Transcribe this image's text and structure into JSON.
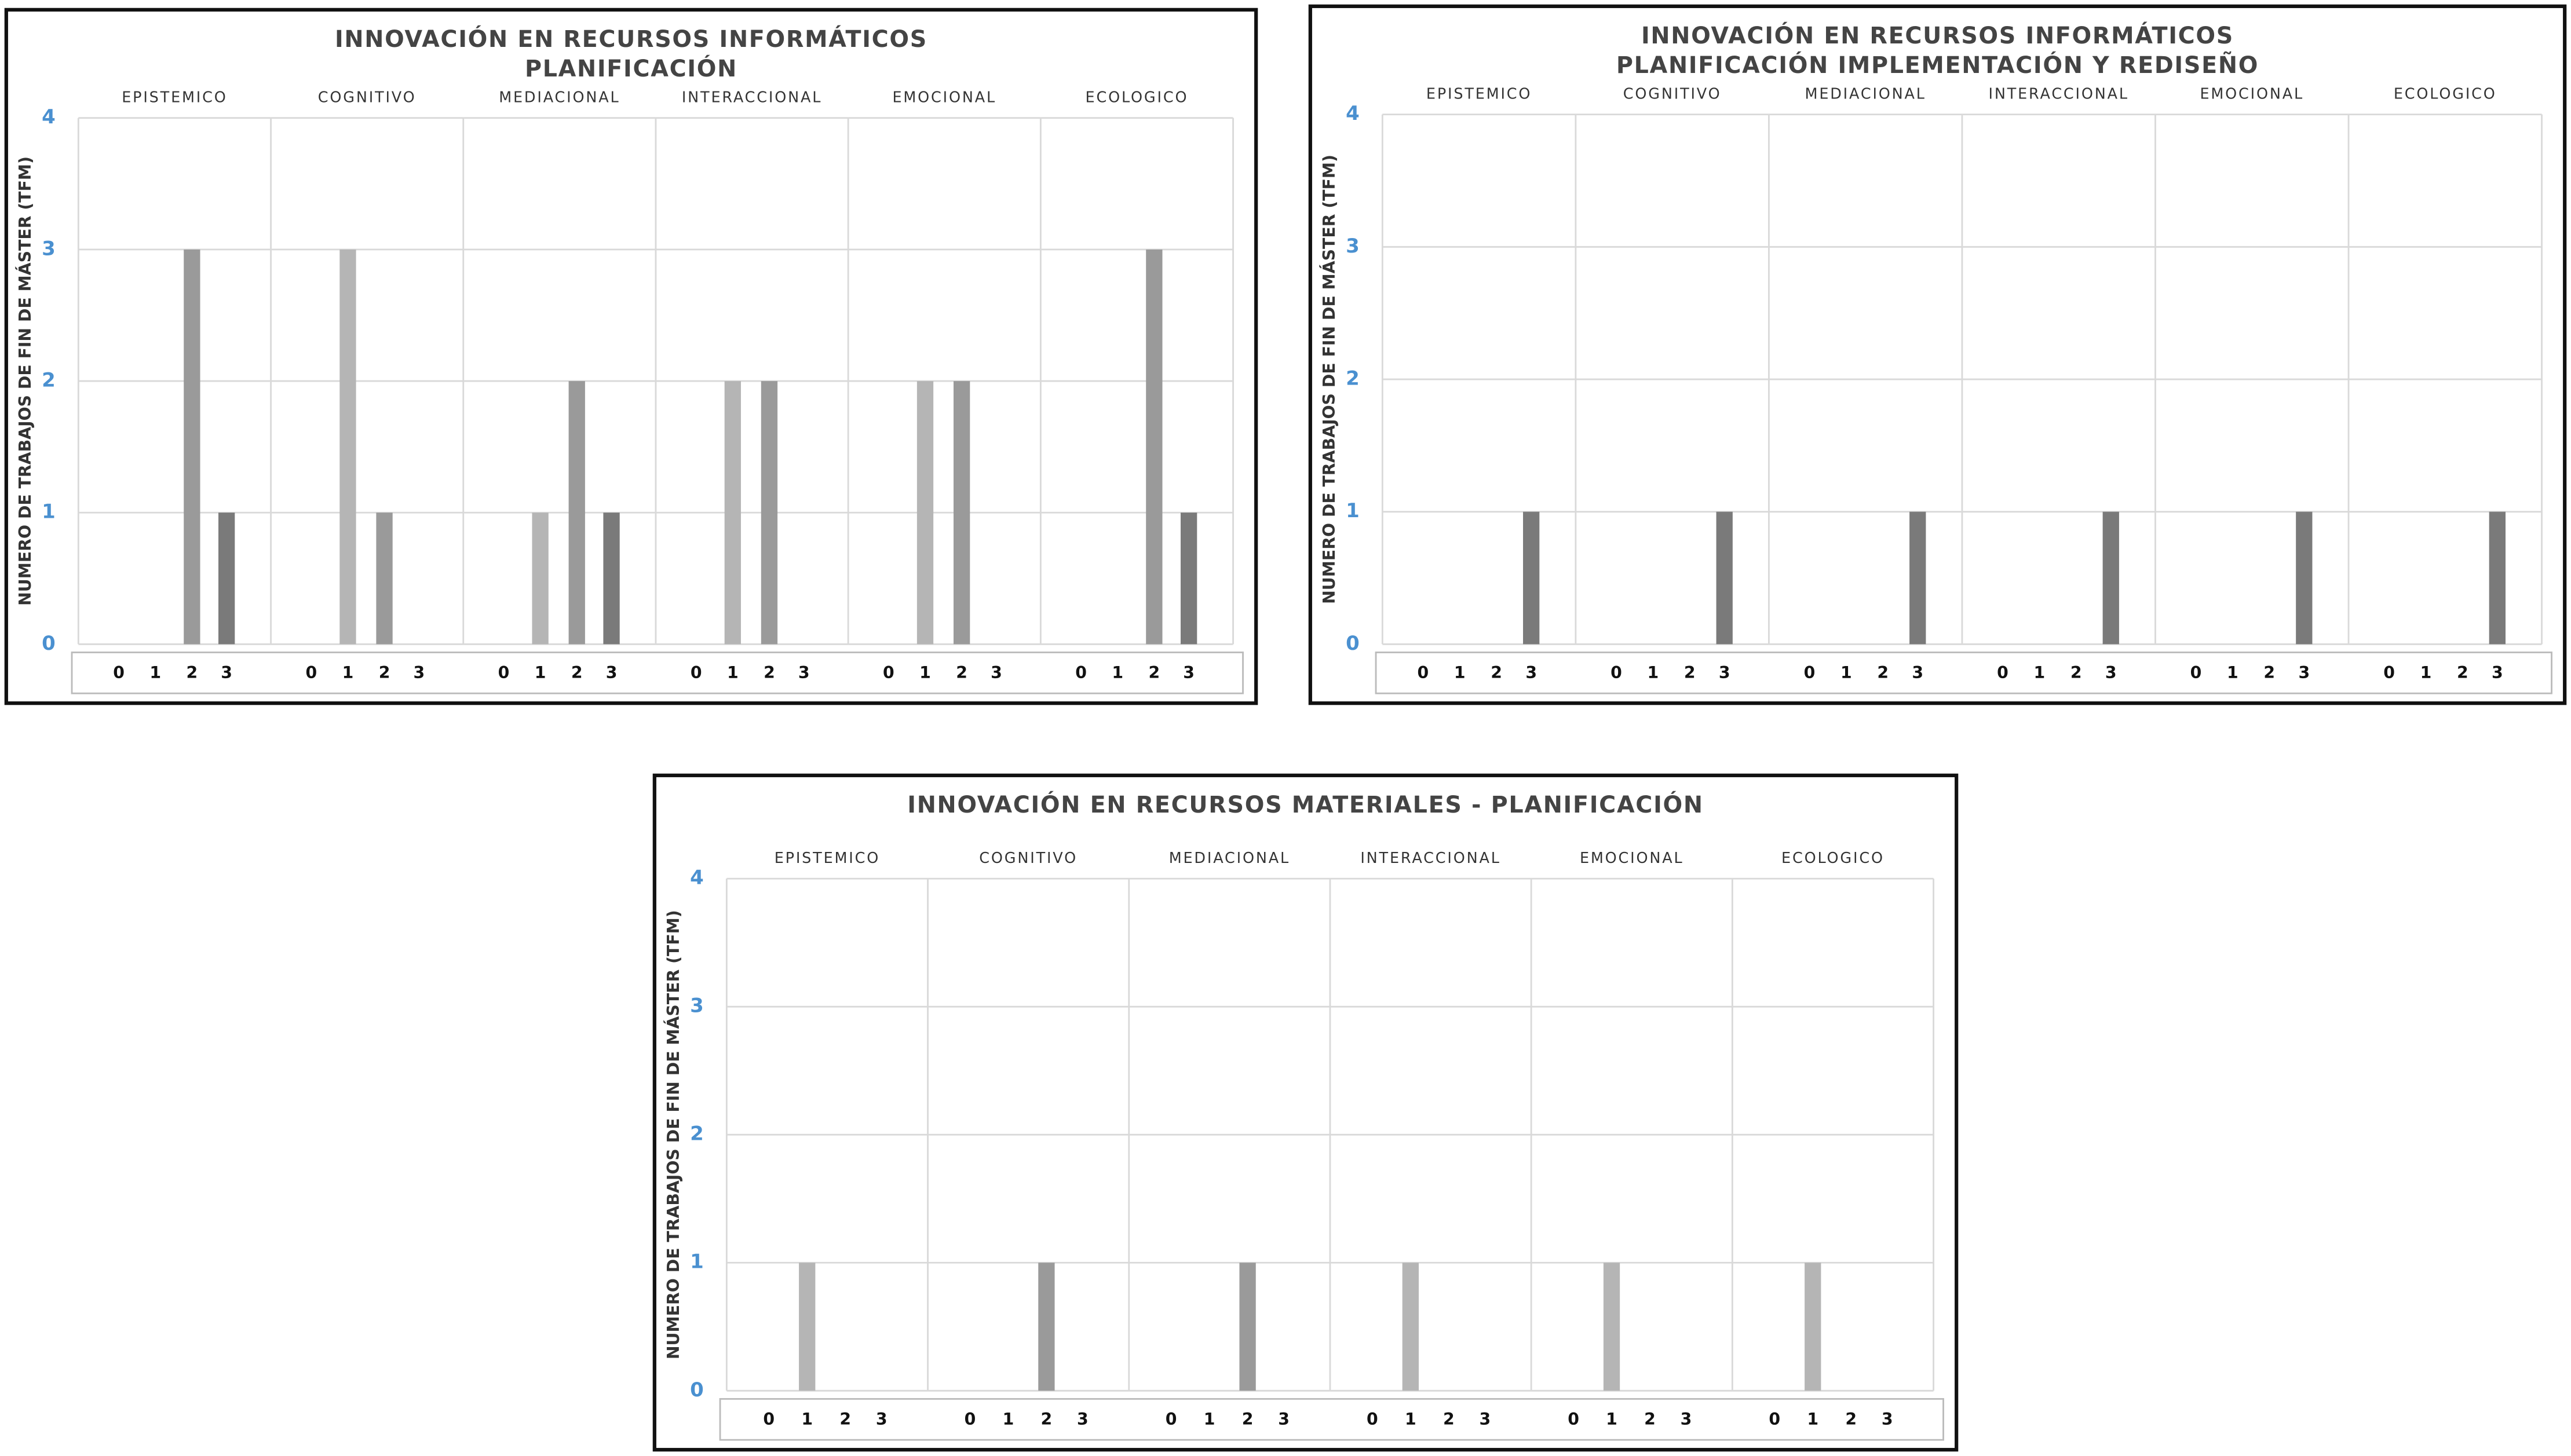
{
  "chart_data": [
    {
      "type": "bar",
      "title": "INNOVACIÓN EN RECURSOS INFORMÁTICOS",
      "subtitle": "PLANIFICACIÓN",
      "y_label": "NUMERO DE TRABAJOS DE FIN DE MÁSTER (TFM)",
      "categories": [
        "0",
        "1",
        "2",
        "3"
      ],
      "colors": [
        "#bdbdbd",
        "#b5b5b5",
        "#9a9a9a",
        "#7a7a7a"
      ],
      "series": [
        {
          "name": "EPISTEMICO",
          "values": [
            0,
            0,
            3,
            1
          ]
        },
        {
          "name": "COGNITIVO",
          "values": [
            0,
            3,
            1,
            0
          ]
        },
        {
          "name": "MEDIACIONAL",
          "values": [
            0,
            1,
            2,
            1
          ]
        },
        {
          "name": "INTERACCIONAL",
          "values": [
            0,
            2,
            2,
            0
          ]
        },
        {
          "name": "EMOCIONAL",
          "values": [
            0,
            2,
            2,
            0
          ]
        },
        {
          "name": "ECOLOGICO",
          "values": [
            0,
            0,
            3,
            1
          ]
        }
      ],
      "ylim": [
        0,
        4
      ],
      "yticks": [
        0,
        1,
        2,
        3,
        4
      ],
      "grid": true
    },
    {
      "type": "bar",
      "title": "INNOVACIÓN EN RECURSOS INFORMÁTICOS",
      "subtitle": "PLANIFICACIÓN IMPLEMENTACIÓN Y REDISEÑO",
      "y_label": "NUMERO DE TRABAJOS DE FIN DE MÁSTER (TFM)",
      "categories": [
        "0",
        "1",
        "2",
        "3"
      ],
      "colors": [
        "#bdbdbd",
        "#b5b5b5",
        "#9a9a9a",
        "#7a7a7a"
      ],
      "series": [
        {
          "name": "EPISTEMICO",
          "values": [
            0,
            0,
            0,
            1
          ]
        },
        {
          "name": "COGNITIVO",
          "values": [
            0,
            0,
            0,
            1
          ]
        },
        {
          "name": "MEDIACIONAL",
          "values": [
            0,
            0,
            0,
            1
          ]
        },
        {
          "name": "INTERACCIONAL",
          "values": [
            0,
            0,
            0,
            1
          ]
        },
        {
          "name": "EMOCIONAL",
          "values": [
            0,
            0,
            0,
            1
          ]
        },
        {
          "name": "ECOLOGICO",
          "values": [
            0,
            0,
            0,
            1
          ]
        }
      ],
      "ylim": [
        0,
        4
      ],
      "yticks": [
        0,
        1,
        2,
        3,
        4
      ],
      "grid": true
    },
    {
      "type": "bar",
      "title": "INNOVACIÓN EN RECURSOS MATERIALES - PLANIFICACIÓN",
      "y_label": "NUMERO DE TRABAJOS DE FIN DE MÁSTER (TFM)",
      "categories": [
        "0",
        "1",
        "2",
        "3"
      ],
      "colors": [
        "#bdbdbd",
        "#b5b5b5",
        "#9a9a9a",
        "#7a7a7a"
      ],
      "series": [
        {
          "name": "EPISTEMICO",
          "values": [
            0,
            1,
            0,
            0
          ]
        },
        {
          "name": "COGNITIVO",
          "values": [
            0,
            0,
            1,
            0
          ]
        },
        {
          "name": "MEDIACIONAL",
          "values": [
            0,
            0,
            1,
            0
          ]
        },
        {
          "name": "INTERACCIONAL",
          "values": [
            0,
            1,
            0,
            0
          ]
        },
        {
          "name": "EMOCIONAL",
          "values": [
            0,
            1,
            0,
            0
          ]
        },
        {
          "name": "ECOLOGICO",
          "values": [
            0,
            1,
            0,
            0
          ]
        }
      ],
      "ylim": [
        0,
        4
      ],
      "yticks": [
        0,
        1,
        2,
        3,
        4
      ],
      "grid": true
    }
  ]
}
